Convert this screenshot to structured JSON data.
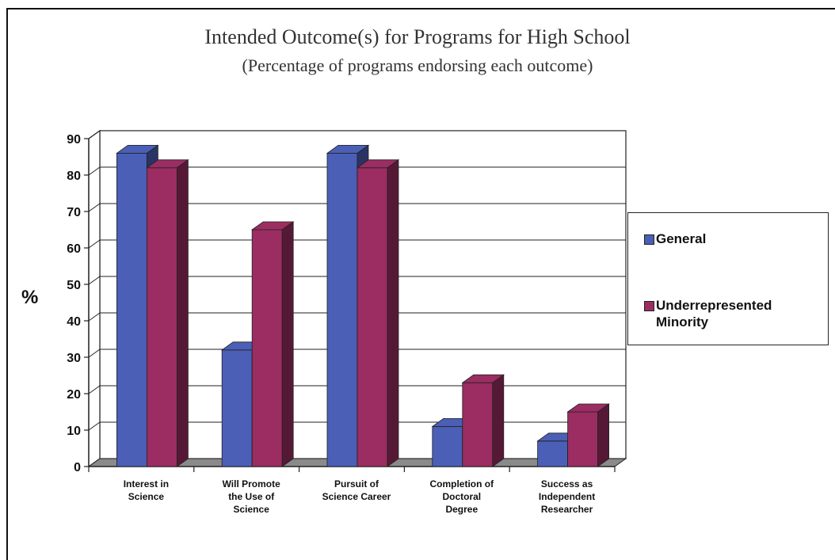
{
  "chart_data": {
    "type": "bar",
    "title": "Intended Outcome(s) for Programs for High School",
    "subtitle": "(Percentage of programs endorsing each outcome)",
    "ylabel": "%",
    "xlabel": "",
    "ylim": [
      0,
      90
    ],
    "yticks": [
      0,
      10,
      20,
      30,
      40,
      50,
      60,
      70,
      80,
      90
    ],
    "grid": true,
    "legend_position": "right",
    "categories": [
      "Interest in\nScience",
      "Will Promote\nthe Use of\nScience",
      "Pursuit of\nScience Career",
      "Completion of\nDoctoral\nDegree",
      "Success as\nIndependent\nResearcher"
    ],
    "series": [
      {
        "name": "General",
        "values": [
          86,
          32,
          86,
          11,
          7
        ],
        "color": "#4a5fb5"
      },
      {
        "name": "Underrepresented\nMinority",
        "values": [
          82,
          65,
          82,
          23,
          15
        ],
        "color": "#9b2d62"
      }
    ]
  }
}
